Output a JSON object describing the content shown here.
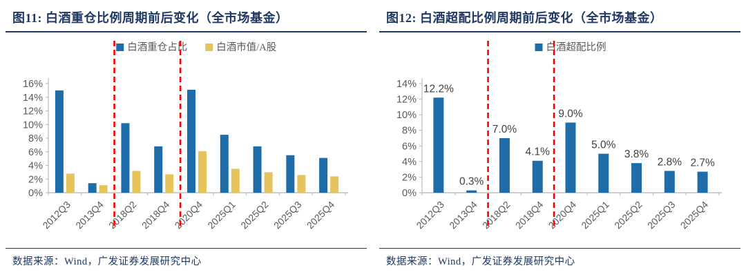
{
  "colors": {
    "title_navy": "#1F3864",
    "bar_blue": "#1F6DA8",
    "bar_yellow": "#E5C45F",
    "axis_line": "#BFBFBF",
    "tick_label": "#595959",
    "data_label": "#404040",
    "red_dashed": "#FF0000"
  },
  "panels": [
    {
      "title": "图11:  白酒重仓比例周期前后变化（全市场基金）",
      "source": "数据来源：Wind，广发证券发展研究中心"
    },
    {
      "title": "图12:  白酒超配比例周期前后变化（全市场基金）",
      "source": "数据来源：Wind，广发证券发展研究中心"
    }
  ],
  "chart_data": [
    {
      "type": "bar",
      "title": "白酒重仓比例周期前后变化（全市场基金）",
      "categories": [
        "2012Q3",
        "2013Q4",
        "2018Q2",
        "2018Q4",
        "2020Q4",
        "2025Q1",
        "2025Q2",
        "2025Q3",
        "2025Q4"
      ],
      "series": [
        {
          "name": "白酒重仓占比",
          "color": "#1F6DA8",
          "values": [
            15.0,
            1.4,
            10.2,
            6.8,
            15.1,
            8.5,
            6.8,
            5.5,
            5.1
          ]
        },
        {
          "name": "白酒市值/A股",
          "color": "#E5C45F",
          "values": [
            2.8,
            1.1,
            3.2,
            2.7,
            6.1,
            3.5,
            3.0,
            2.6,
            2.4
          ]
        }
      ],
      "ylim": [
        0,
        16
      ],
      "ytick_step": 2,
      "ytick_suffix": "%",
      "legend_position": "top",
      "grid": false,
      "data_labels": false,
      "red_dashed_boundaries": [
        2,
        4
      ]
    },
    {
      "type": "bar",
      "title": "白酒超配比例周期前后变化（全市场基金）",
      "categories": [
        "2012Q3",
        "2013Q4",
        "2018Q2",
        "2018Q4",
        "2020Q4",
        "2025Q1",
        "2025Q2",
        "2025Q3",
        "2025Q4"
      ],
      "series": [
        {
          "name": "白酒超配比例",
          "color": "#1F6DA8",
          "values": [
            12.2,
            0.3,
            7.0,
            4.1,
            9.0,
            5.0,
            3.8,
            2.8,
            2.7
          ]
        }
      ],
      "data_labels_text": [
        "12.2%",
        "0.3%",
        "7.0%",
        "4.1%",
        "9.0%",
        "5.0%",
        "3.8%",
        "2.8%",
        "2.7%"
      ],
      "ylim": [
        0,
        14
      ],
      "ytick_step": 2,
      "ytick_suffix": "%",
      "legend_position": "top",
      "grid": false,
      "data_labels": true,
      "red_dashed_boundaries": [
        2,
        4
      ]
    }
  ]
}
